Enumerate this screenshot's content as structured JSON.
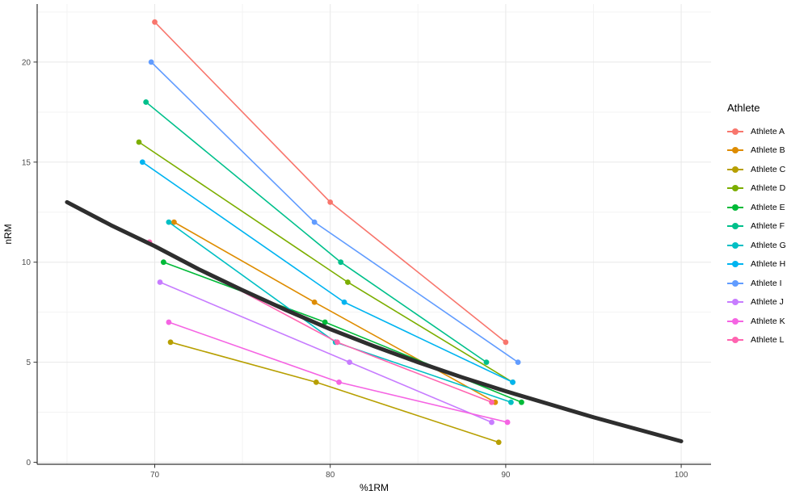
{
  "chart_data": {
    "type": "line",
    "title": "",
    "xlabel": "%1RM",
    "ylabel": "nRM",
    "xlim": [
      63.3,
      101.7
    ],
    "ylim": [
      -0.1,
      22.9
    ],
    "x_ticks": [
      70,
      80,
      90,
      100
    ],
    "y_ticks": [
      0,
      5,
      10,
      15,
      20
    ],
    "x_minor_ticks": [
      65,
      75,
      85,
      95
    ],
    "y_minor_ticks": [
      2.5,
      7.5,
      12.5,
      17.5,
      22.5
    ],
    "grid": true,
    "legend_title": "Athlete",
    "legend_position": "right",
    "series": [
      {
        "name": "Athlete A",
        "color": "#F8766D",
        "points": [
          [
            70.0,
            22
          ],
          [
            80.0,
            13
          ],
          [
            90.0,
            6
          ]
        ]
      },
      {
        "name": "Athlete B",
        "color": "#DE8C00",
        "points": [
          [
            71.1,
            12
          ],
          [
            79.1,
            8
          ],
          [
            89.4,
            3
          ]
        ]
      },
      {
        "name": "Athlete C",
        "color": "#B79F00",
        "points": [
          [
            70.9,
            6
          ],
          [
            79.2,
            4
          ],
          [
            89.6,
            1
          ]
        ]
      },
      {
        "name": "Athlete D",
        "color": "#7CAE00",
        "points": [
          [
            69.1,
            16
          ],
          [
            81.0,
            9
          ],
          [
            90.4,
            4
          ]
        ]
      },
      {
        "name": "Athlete E",
        "color": "#00BA38",
        "points": [
          [
            70.5,
            10
          ],
          [
            79.7,
            7
          ],
          [
            90.9,
            3
          ]
        ]
      },
      {
        "name": "Athlete F",
        "color": "#00C08B",
        "points": [
          [
            69.5,
            18
          ],
          [
            80.6,
            10
          ],
          [
            88.9,
            5
          ]
        ]
      },
      {
        "name": "Athlete G",
        "color": "#00BFC4",
        "points": [
          [
            70.8,
            12
          ],
          [
            80.3,
            6
          ],
          [
            90.3,
            3
          ]
        ]
      },
      {
        "name": "Athlete H",
        "color": "#00B4F0",
        "points": [
          [
            69.3,
            15
          ],
          [
            80.8,
            8
          ],
          [
            90.4,
            4
          ]
        ]
      },
      {
        "name": "Athlete I",
        "color": "#619CFF",
        "points": [
          [
            69.8,
            20
          ],
          [
            79.1,
            12
          ],
          [
            90.7,
            5
          ]
        ]
      },
      {
        "name": "Athlete J",
        "color": "#C77CFF",
        "points": [
          [
            70.3,
            9
          ],
          [
            81.1,
            5
          ],
          [
            89.2,
            2
          ]
        ]
      },
      {
        "name": "Athlete K",
        "color": "#F564E3",
        "points": [
          [
            70.8,
            7
          ],
          [
            80.5,
            4
          ],
          [
            90.1,
            2
          ]
        ]
      },
      {
        "name": "Athlete L",
        "color": "#FF64B0",
        "points": [
          [
            69.7,
            11
          ],
          [
            80.4,
            6
          ],
          [
            89.2,
            3
          ]
        ]
      }
    ],
    "reference_curve": {
      "name": "rm-prediction-curve",
      "color": "#2E2E2E",
      "points": [
        [
          65,
          13.0
        ],
        [
          67.5,
          11.85
        ],
        [
          70,
          10.8
        ],
        [
          72.5,
          9.65
        ],
        [
          75,
          8.6
        ],
        [
          77.5,
          7.6
        ],
        [
          80,
          6.65
        ],
        [
          82.5,
          5.8
        ],
        [
          85,
          5.0
        ],
        [
          87.5,
          4.25
        ],
        [
          90,
          3.55
        ],
        [
          92.5,
          2.9
        ],
        [
          95,
          2.25
        ],
        [
          97.5,
          1.65
        ],
        [
          100,
          1.05
        ]
      ]
    },
    "theme": {
      "panel_background": "#FFFFFF",
      "grid_major_color": "#E8E8E8",
      "grid_minor_color": "#F3F3F3",
      "axis_line_color": "#333333",
      "tick_label_color": "#4D4D4D",
      "axis_title_color": "#000000"
    }
  }
}
